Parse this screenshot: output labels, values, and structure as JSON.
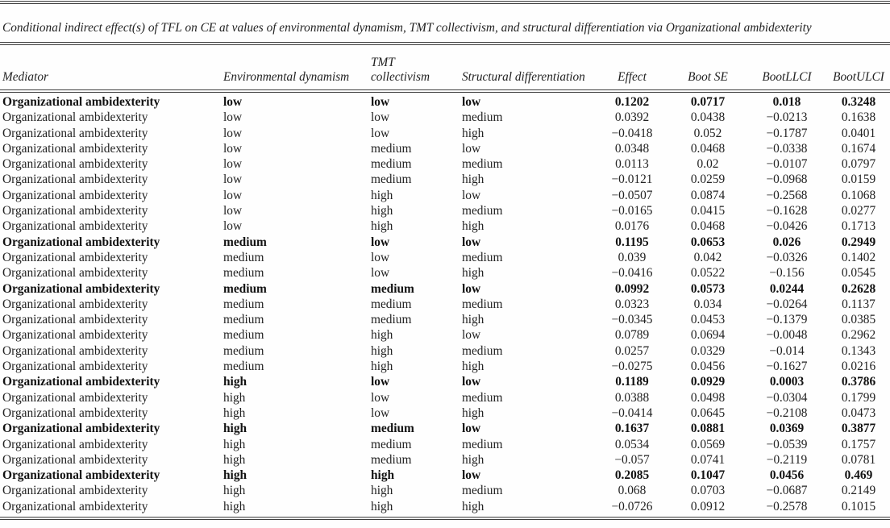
{
  "document": {
    "caption": "Conditional indirect effect(s) of TFL on CE at values of environmental dynamism, TMT collectivism, and structural differentiation via Organizational ambidexterity"
  },
  "table": {
    "columns": [
      "Mediator",
      "Environmental dynamism",
      "TMT collectivism",
      "Structural differentiation",
      "Effect",
      "Boot SE",
      "BootLLCI",
      "BootULCI"
    ],
    "rows": [
      {
        "mediator": "Organizational ambidexterity",
        "env_dynamism": "low",
        "tmt_collectivism": "low",
        "structural_differentiation": "low",
        "effect": "0.1202",
        "boot_se": "0.0717",
        "boot_llci": "0.018",
        "boot_ulci": "0.3248",
        "bold": true
      },
      {
        "mediator": "Organizational ambidexterity",
        "env_dynamism": "low",
        "tmt_collectivism": "low",
        "structural_differentiation": "medium",
        "effect": "0.0392",
        "boot_se": "0.0438",
        "boot_llci": "−0.0213",
        "boot_ulci": "0.1638",
        "bold": false
      },
      {
        "mediator": "Organizational ambidexterity",
        "env_dynamism": "low",
        "tmt_collectivism": "low",
        "structural_differentiation": "high",
        "effect": "−0.0418",
        "boot_se": "0.052",
        "boot_llci": "−0.1787",
        "boot_ulci": "0.0401",
        "bold": false
      },
      {
        "mediator": "Organizational ambidexterity",
        "env_dynamism": "low",
        "tmt_collectivism": "medium",
        "structural_differentiation": "low",
        "effect": "0.0348",
        "boot_se": "0.0468",
        "boot_llci": "−0.0338",
        "boot_ulci": "0.1674",
        "bold": false
      },
      {
        "mediator": "Organizational ambidexterity",
        "env_dynamism": "low",
        "tmt_collectivism": "medium",
        "structural_differentiation": "medium",
        "effect": "0.0113",
        "boot_se": "0.02",
        "boot_llci": "−0.0107",
        "boot_ulci": "0.0797",
        "bold": false
      },
      {
        "mediator": "Organizational ambidexterity",
        "env_dynamism": "low",
        "tmt_collectivism": "medium",
        "structural_differentiation": "high",
        "effect": "−0.0121",
        "boot_se": "0.0259",
        "boot_llci": "−0.0968",
        "boot_ulci": "0.0159",
        "bold": false
      },
      {
        "mediator": "Organizational ambidexterity",
        "env_dynamism": "low",
        "tmt_collectivism": "high",
        "structural_differentiation": "low",
        "effect": "−0.0507",
        "boot_se": "0.0874",
        "boot_llci": "−0.2568",
        "boot_ulci": "0.1068",
        "bold": false
      },
      {
        "mediator": "Organizational ambidexterity",
        "env_dynamism": "low",
        "tmt_collectivism": "high",
        "structural_differentiation": "medium",
        "effect": "−0.0165",
        "boot_se": "0.0415",
        "boot_llci": "−0.1628",
        "boot_ulci": "0.0277",
        "bold": false
      },
      {
        "mediator": "Organizational ambidexterity",
        "env_dynamism": "low",
        "tmt_collectivism": "high",
        "structural_differentiation": "high",
        "effect": "0.0176",
        "boot_se": "0.0468",
        "boot_llci": "−0.0426",
        "boot_ulci": "0.1713",
        "bold": false
      },
      {
        "mediator": "Organizational ambidexterity",
        "env_dynamism": "medium",
        "tmt_collectivism": "low",
        "structural_differentiation": "low",
        "effect": "0.1195",
        "boot_se": "0.0653",
        "boot_llci": "0.026",
        "boot_ulci": "0.2949",
        "bold": true
      },
      {
        "mediator": "Organizational ambidexterity",
        "env_dynamism": "medium",
        "tmt_collectivism": "low",
        "structural_differentiation": "medium",
        "effect": "0.039",
        "boot_se": "0.042",
        "boot_llci": "−0.0326",
        "boot_ulci": "0.1402",
        "bold": false
      },
      {
        "mediator": "Organizational ambidexterity",
        "env_dynamism": "medium",
        "tmt_collectivism": "low",
        "structural_differentiation": "high",
        "effect": "−0.0416",
        "boot_se": "0.0522",
        "boot_llci": "−0.156",
        "boot_ulci": "0.0545",
        "bold": false
      },
      {
        "mediator": "Organizational ambidexterity",
        "env_dynamism": "medium",
        "tmt_collectivism": "medium",
        "structural_differentiation": "low",
        "effect": "0.0992",
        "boot_se": "0.0573",
        "boot_llci": "0.0244",
        "boot_ulci": "0.2628",
        "bold": true
      },
      {
        "mediator": "Organizational ambidexterity",
        "env_dynamism": "medium",
        "tmt_collectivism": "medium",
        "structural_differentiation": "medium",
        "effect": "0.0323",
        "boot_se": "0.034",
        "boot_llci": "−0.0264",
        "boot_ulci": "0.1137",
        "bold": false
      },
      {
        "mediator": "Organizational ambidexterity",
        "env_dynamism": "medium",
        "tmt_collectivism": "medium",
        "structural_differentiation": "high",
        "effect": "−0.0345",
        "boot_se": "0.0453",
        "boot_llci": "−0.1379",
        "boot_ulci": "0.0385",
        "bold": false
      },
      {
        "mediator": "Organizational ambidexterity",
        "env_dynamism": "medium",
        "tmt_collectivism": "high",
        "structural_differentiation": "low",
        "effect": "0.0789",
        "boot_se": "0.0694",
        "boot_llci": "−0.0048",
        "boot_ulci": "0.2962",
        "bold": false
      },
      {
        "mediator": "Organizational ambidexterity",
        "env_dynamism": "medium",
        "tmt_collectivism": "high",
        "structural_differentiation": "medium",
        "effect": "0.0257",
        "boot_se": "0.0329",
        "boot_llci": "−0.014",
        "boot_ulci": "0.1343",
        "bold": false
      },
      {
        "mediator": "Organizational ambidexterity",
        "env_dynamism": "medium",
        "tmt_collectivism": "high",
        "structural_differentiation": "high",
        "effect": "−0.0275",
        "boot_se": "0.0456",
        "boot_llci": "−0.1627",
        "boot_ulci": "0.0216",
        "bold": false
      },
      {
        "mediator": "Organizational ambidexterity",
        "env_dynamism": "high",
        "tmt_collectivism": "low",
        "structural_differentiation": "low",
        "effect": "0.1189",
        "boot_se": "0.0929",
        "boot_llci": "0.0003",
        "boot_ulci": "0.3786",
        "bold": true
      },
      {
        "mediator": "Organizational ambidexterity",
        "env_dynamism": "high",
        "tmt_collectivism": "low",
        "structural_differentiation": "medium",
        "effect": "0.0388",
        "boot_se": "0.0498",
        "boot_llci": "−0.0304",
        "boot_ulci": "0.1799",
        "bold": false
      },
      {
        "mediator": "Organizational ambidexterity",
        "env_dynamism": "high",
        "tmt_collectivism": "low",
        "structural_differentiation": "high",
        "effect": "−0.0414",
        "boot_se": "0.0645",
        "boot_llci": "−0.2108",
        "boot_ulci": "0.0473",
        "bold": false
      },
      {
        "mediator": "Organizational ambidexterity",
        "env_dynamism": "high",
        "tmt_collectivism": "medium",
        "structural_differentiation": "low",
        "effect": "0.1637",
        "boot_se": "0.0881",
        "boot_llci": "0.0369",
        "boot_ulci": "0.3877",
        "bold": true
      },
      {
        "mediator": "Organizational ambidexterity",
        "env_dynamism": "high",
        "tmt_collectivism": "medium",
        "structural_differentiation": "medium",
        "effect": "0.0534",
        "boot_se": "0.0569",
        "boot_llci": "−0.0539",
        "boot_ulci": "0.1757",
        "bold": false
      },
      {
        "mediator": "Organizational ambidexterity",
        "env_dynamism": "high",
        "tmt_collectivism": "medium",
        "structural_differentiation": "high",
        "effect": "−0.057",
        "boot_se": "0.0741",
        "boot_llci": "−0.2119",
        "boot_ulci": "0.0781",
        "bold": false
      },
      {
        "mediator": "Organizational ambidexterity",
        "env_dynamism": "high",
        "tmt_collectivism": "high",
        "structural_differentiation": "low",
        "effect": "0.2085",
        "boot_se": "0.1047",
        "boot_llci": "0.0456",
        "boot_ulci": "0.469",
        "bold": true
      },
      {
        "mediator": "Organizational ambidexterity",
        "env_dynamism": "high",
        "tmt_collectivism": "high",
        "structural_differentiation": "medium",
        "effect": "0.068",
        "boot_se": "0.0703",
        "boot_llci": "−0.0687",
        "boot_ulci": "0.2149",
        "bold": false
      },
      {
        "mediator": "Organizational ambidexterity",
        "env_dynamism": "high",
        "tmt_collectivism": "high",
        "structural_differentiation": "high",
        "effect": "−0.0726",
        "boot_se": "0.0912",
        "boot_llci": "−0.2578",
        "boot_ulci": "0.1015",
        "bold": false
      }
    ]
  }
}
